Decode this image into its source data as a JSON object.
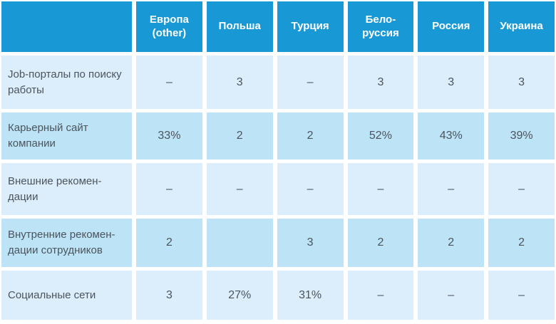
{
  "chart_data": {
    "type": "table",
    "title": "",
    "colors": {
      "header_bg": "#1899d6",
      "header_text": "#ffffff",
      "row_light": "#dceefb",
      "row_dark": "#bde3f7",
      "body_text": "#4b545c"
    },
    "corner_label": "",
    "columns": [
      {
        "label": "Европа\n(other)"
      },
      {
        "label": "Польша"
      },
      {
        "label": "Турция"
      },
      {
        "label": "Бело-\nруссия"
      },
      {
        "label": "Россия"
      },
      {
        "label": "Украина"
      }
    ],
    "rows": [
      {
        "label": "Job-порталы по поиску\nработы",
        "values": [
          "–",
          "3",
          "–",
          "3",
          "3",
          "3"
        ]
      },
      {
        "label": "Карьерный сайт\nкомпании",
        "values": [
          "33%",
          "2",
          "2",
          "52%",
          "43%",
          "39%"
        ]
      },
      {
        "label": "Внешние рекомен-\nдации",
        "values": [
          "–",
          "–",
          "–",
          "–",
          "–",
          "–"
        ]
      },
      {
        "label": "Внутренние рекомен-\nдации сотрудников",
        "values": [
          "2",
          "",
          "3",
          "2",
          "2",
          "2"
        ]
      },
      {
        "label": "Социальные сети",
        "values": [
          "3",
          "27%",
          "31%",
          "–",
          "–",
          "–"
        ]
      }
    ]
  }
}
